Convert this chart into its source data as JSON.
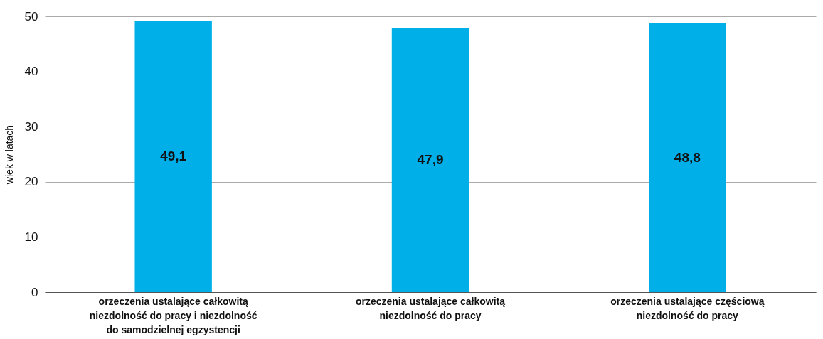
{
  "chart_data": {
    "type": "bar",
    "ylabel": "wiek w latach",
    "categories": [
      "orzeczenia ustalające całkowitą niezdolność do pracy i niezdolność do samodzielnej egzystencji",
      "orzeczenia ustalające całkowitą niezdolność do pracy",
      "orzeczenia ustalające częściową niezdolność do pracy"
    ],
    "values": [
      49.1,
      47.9,
      48.8
    ],
    "value_labels": [
      "49,1",
      "47,9",
      "48,8"
    ],
    "color": "#00aee8",
    "ylim": [
      0,
      50
    ],
    "yticks": [
      0,
      10,
      20,
      30,
      40,
      50
    ],
    "grid": "y"
  }
}
